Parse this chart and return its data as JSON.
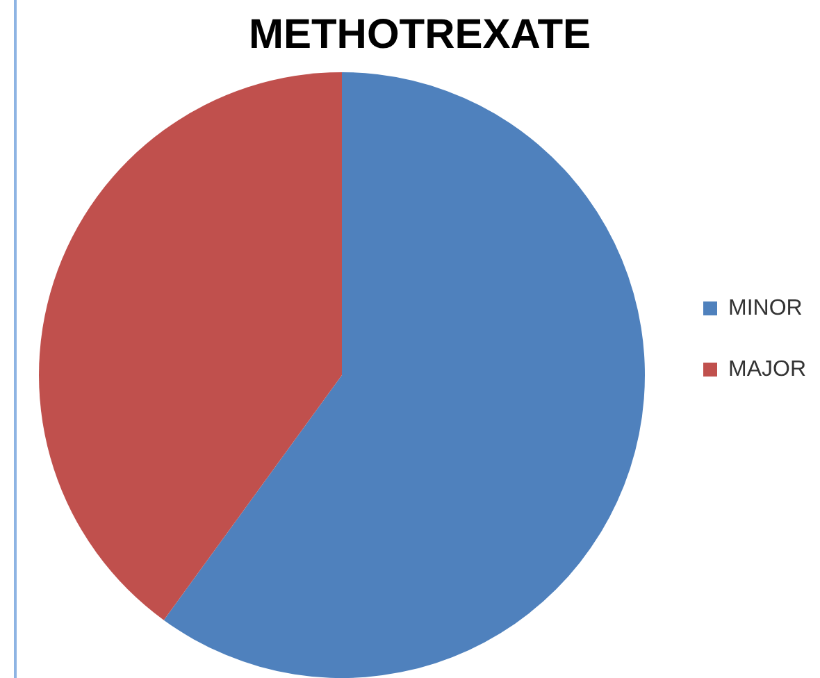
{
  "chart_data": {
    "type": "pie",
    "title": "METHOTREXATE",
    "categories": [
      "MINOR",
      "MAJOR"
    ],
    "values": [
      60,
      40
    ],
    "colors": [
      "#4f81bd",
      "#c0504d"
    ],
    "legend": "right"
  }
}
